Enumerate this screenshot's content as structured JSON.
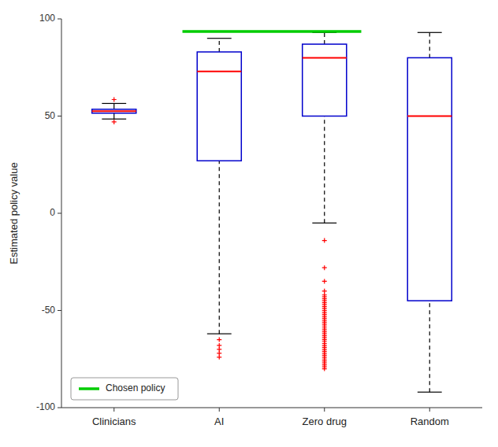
{
  "chart_data": {
    "type": "box",
    "categories": [
      "Clinicians",
      "AI",
      "Zero drug",
      "Random"
    ],
    "ylabel": "Estimated policy value",
    "ylim": [
      -100,
      100
    ],
    "yticks": [
      -100,
      -50,
      0,
      50,
      100
    ],
    "grid": false,
    "legend": "lower left",
    "box_color": "#0000CC",
    "median_color": "#FF0000",
    "whisker_color": "#000000",
    "outlier_color": "#FF0000",
    "boxes": [
      {
        "whisker_low": 48.5,
        "q1": 51.5,
        "median": 52.5,
        "q3": 53.5,
        "whisker_high": 56.5,
        "outliers_low": [
          47.0
        ],
        "outliers_high": [
          58.5
        ],
        "line_style": "solid"
      },
      {
        "whisker_low": -62.0,
        "q1": 27.0,
        "median": 73.0,
        "q3": 83.0,
        "whisker_high": 90.0,
        "outliers_low": [
          -65.0,
          -68.0,
          -70.0,
          -72.0,
          -74.0
        ],
        "outliers_high": [],
        "line_style": "dashed"
      },
      {
        "whisker_low": -5.0,
        "q1": 50.0,
        "median": 80.0,
        "q3": 87.0,
        "whisker_high": 93.0,
        "outliers_low": [
          -14.0,
          -28.0,
          -35.0,
          -40.0,
          -42.0,
          -43.0,
          -44.0,
          -45.0,
          -46.0,
          -47.0,
          -48.0,
          -49.0,
          -50.0,
          -51.0,
          -52.0,
          -53.0,
          -54.0,
          -55.0,
          -56.0,
          -57.0,
          -58.0,
          -59.0,
          -60.0,
          -61.0,
          -62.0,
          -63.0,
          -64.0,
          -65.0,
          -66.0,
          -67.0,
          -68.0,
          -69.0,
          -70.0,
          -71.0,
          -72.0,
          -73.0,
          -74.0,
          -75.0,
          -76.0,
          -77.0,
          -78.0,
          -79.0,
          -80.0
        ],
        "outliers_high": [],
        "line_style": "dashed"
      },
      {
        "whisker_low": -92.0,
        "q1": -45.0,
        "median": 50.0,
        "q3": 80.0,
        "whisker_high": 93.0,
        "outliers_low": [],
        "outliers_high": [],
        "line_style": "dashed"
      }
    ],
    "reference_line": {
      "name": "Chosen policy",
      "value": 93.5,
      "color": "#00CC00",
      "categories": [
        "AI",
        "Zero drug"
      ]
    }
  }
}
